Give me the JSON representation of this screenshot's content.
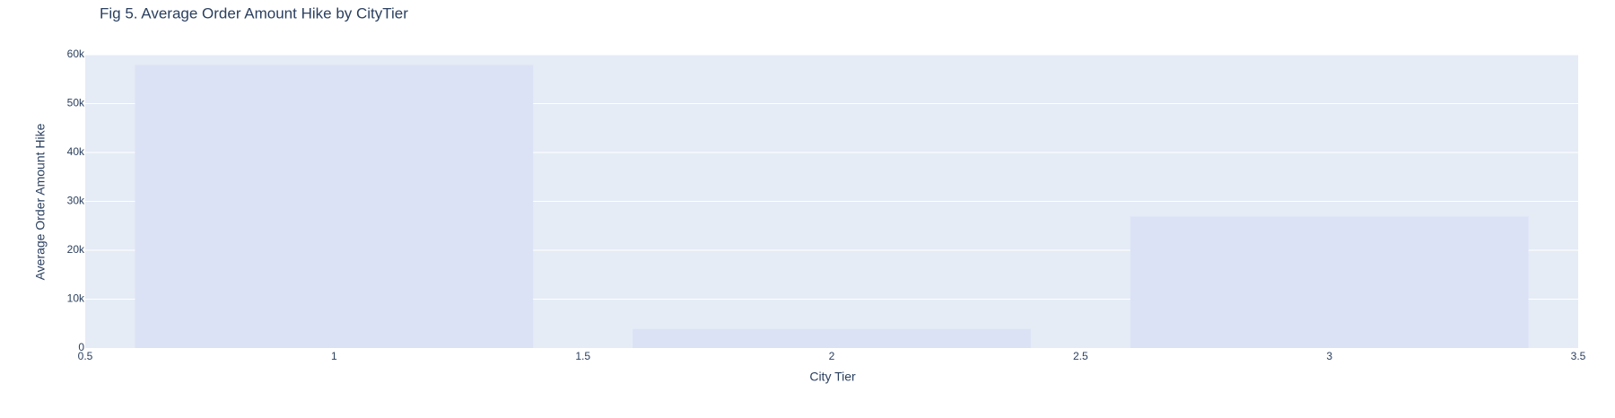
{
  "chart_data": {
    "type": "bar",
    "title": "Fig 5. Average Order Amount Hike by CityTier",
    "xlabel": "City Tier",
    "ylabel": "Average Order Amount Hike",
    "x": [
      1,
      2,
      3
    ],
    "values": [
      57900,
      3900,
      26900
    ],
    "bar_width": 0.8,
    "xlim": [
      0.5,
      3.5
    ],
    "ylim": [
      0,
      60000
    ],
    "x_ticks": [
      {
        "value": 0.5,
        "label": "0.5"
      },
      {
        "value": 1,
        "label": "1"
      },
      {
        "value": 1.5,
        "label": "1.5"
      },
      {
        "value": 2,
        "label": "2"
      },
      {
        "value": 2.5,
        "label": "2.5"
      },
      {
        "value": 3,
        "label": "3"
      },
      {
        "value": 3.5,
        "label": "3.5"
      }
    ],
    "y_ticks": [
      {
        "value": 0,
        "label": "0"
      },
      {
        "value": 10000,
        "label": "10k"
      },
      {
        "value": 20000,
        "label": "20k"
      },
      {
        "value": 30000,
        "label": "30k"
      },
      {
        "value": 40000,
        "label": "40k"
      },
      {
        "value": 50000,
        "label": "50k"
      },
      {
        "value": 60000,
        "label": "60k"
      }
    ],
    "grid": true,
    "legend": "none",
    "colors": {
      "plot_background": "#e5ecf6",
      "bar_fill": "#dbe2f5",
      "grid": "#ffffff",
      "text": "#2a3f5f"
    }
  }
}
